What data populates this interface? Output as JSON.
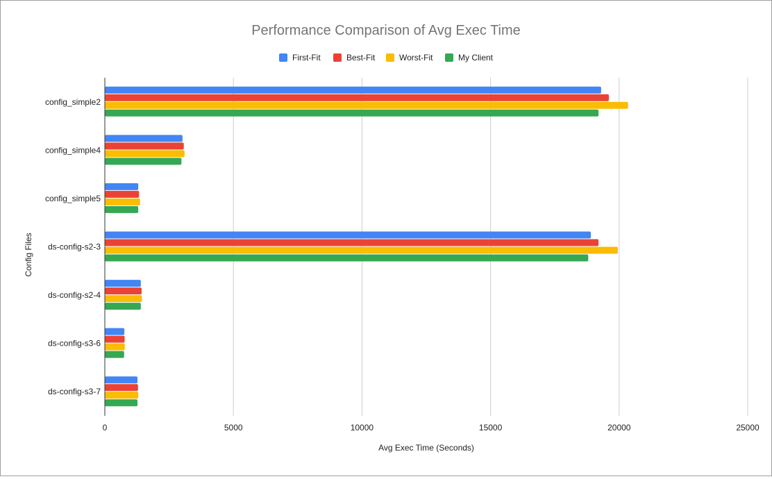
{
  "chart_data": {
    "type": "bar",
    "orientation": "horizontal",
    "title": "Performance Comparison of Avg Exec Time",
    "xlabel": "Avg Exec Time (Seconds)",
    "ylabel": "Config Files",
    "categories": [
      "config_simple2",
      "config_simple4",
      "config_simple5",
      "ds-config-s2-3",
      "ds-config-s2-4",
      "ds-config-s3-6",
      "ds-config-s3-7"
    ],
    "series": [
      {
        "name": "First-Fit",
        "color": "#4285f4",
        "values": [
          19300,
          3020,
          1300,
          18900,
          1400,
          760,
          1270
        ]
      },
      {
        "name": "Best-Fit",
        "color": "#ea4335",
        "values": [
          19600,
          3070,
          1330,
          19200,
          1430,
          770,
          1290
        ]
      },
      {
        "name": "Worst-Fit",
        "color": "#fbbc04",
        "values": [
          20350,
          3100,
          1370,
          19950,
          1440,
          775,
          1300
        ]
      },
      {
        "name": "My Client",
        "color": "#34a853",
        "values": [
          19200,
          2980,
          1300,
          18800,
          1400,
          750,
          1270
        ]
      }
    ],
    "xlim": [
      0,
      25000
    ],
    "xticks": [
      "0",
      "5000",
      "10000",
      "15000",
      "20000",
      "25000"
    ],
    "grid": true,
    "legend_position": "top"
  }
}
